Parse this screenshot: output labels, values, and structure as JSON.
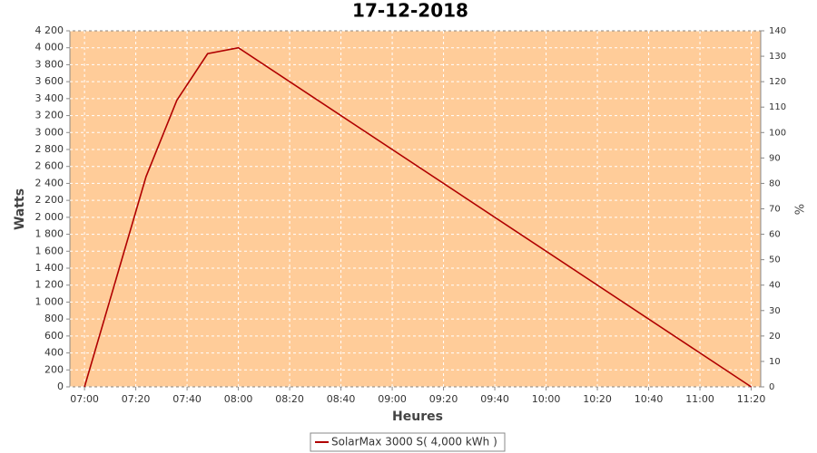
{
  "chart_data": {
    "type": "line",
    "title": "17-12-2018",
    "x_label": "Heures",
    "y_label": "Watts",
    "y2_label": "%",
    "x": [
      420,
      444,
      456,
      468,
      480,
      680
    ],
    "series": [
      {
        "name": "SolarMax 3000 S( 4,000 kWh )",
        "color": "#b00000",
        "values": [
          0,
          2480,
          3380,
          3930,
          4000,
          0
        ]
      }
    ],
    "xlim": [
      414.3,
      683.7
    ],
    "xticks": [
      {
        "value": 420,
        "label": "07:00"
      },
      {
        "value": 440,
        "label": "07:20"
      },
      {
        "value": 460,
        "label": "07:40"
      },
      {
        "value": 480,
        "label": "08:00"
      },
      {
        "value": 500,
        "label": "08:20"
      },
      {
        "value": 520,
        "label": "08:40"
      },
      {
        "value": 540,
        "label": "09:00"
      },
      {
        "value": 560,
        "label": "09:20"
      },
      {
        "value": 580,
        "label": "09:40"
      },
      {
        "value": 600,
        "label": "10:00"
      },
      {
        "value": 620,
        "label": "10:20"
      },
      {
        "value": 640,
        "label": "10:40"
      },
      {
        "value": 660,
        "label": "11:00"
      },
      {
        "value": 680,
        "label": "11:20"
      }
    ],
    "ylim": [
      0,
      4200
    ],
    "yticks": [
      0,
      200,
      400,
      600,
      800,
      {
        "value": 1000,
        "label": "1 000"
      },
      {
        "value": 1200,
        "label": "1 200"
      },
      {
        "value": 1400,
        "label": "1 400"
      },
      {
        "value": 1600,
        "label": "1 600"
      },
      {
        "value": 1800,
        "label": "1 800"
      },
      {
        "value": 2000,
        "label": "2 000"
      },
      {
        "value": 2200,
        "label": "2 200"
      },
      {
        "value": 2400,
        "label": "2 400"
      },
      {
        "value": 2600,
        "label": "2 600"
      },
      {
        "value": 2800,
        "label": "2 800"
      },
      {
        "value": 3000,
        "label": "3 000"
      },
      {
        "value": 3200,
        "label": "3 200"
      },
      {
        "value": 3400,
        "label": "3 400"
      },
      {
        "value": 3600,
        "label": "3 600"
      },
      {
        "value": 3800,
        "label": "3 800"
      },
      {
        "value": 4000,
        "label": "4 000"
      },
      {
        "value": 4200,
        "label": "4 200"
      }
    ],
    "y2lim": [
      0,
      140
    ],
    "y2ticks": [
      0,
      10,
      20,
      30,
      40,
      50,
      60,
      70,
      80,
      90,
      100,
      110,
      120,
      130,
      140
    ],
    "grid": true,
    "plot_background": "#ffcc99"
  }
}
